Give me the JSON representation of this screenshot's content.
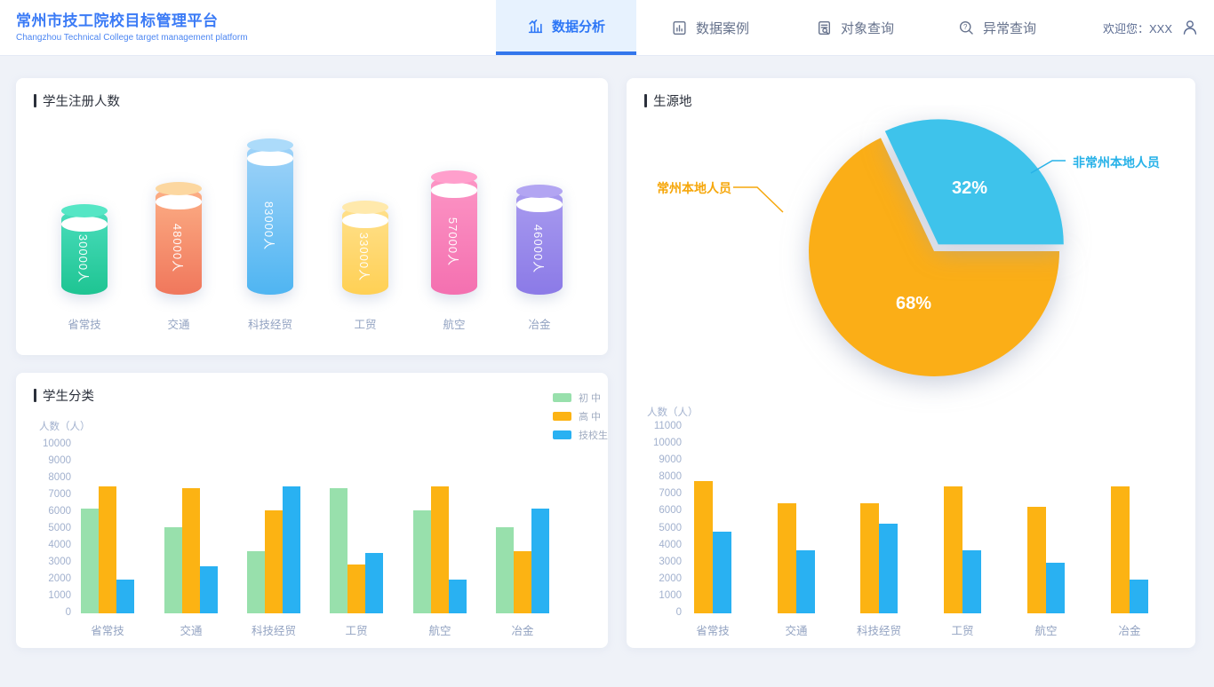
{
  "header": {
    "title": "常州市技工院校目标管理平台",
    "subtitle": "Changzhou Technical College target management platform",
    "tabs": [
      {
        "label": "数据分析",
        "icon": "analysis-icon",
        "active": true
      },
      {
        "label": "数据案例",
        "icon": "case-icon",
        "active": false
      },
      {
        "label": "对象查询",
        "icon": "object-query-icon",
        "active": false
      },
      {
        "label": "异常查询",
        "icon": "anomaly-query-icon",
        "active": false
      }
    ],
    "welcome": "欢迎您：XXX"
  },
  "panels": {
    "registration": {
      "title": "学生注册人数"
    },
    "category": {
      "title": "学生分类",
      "ylabel": "人数（人）"
    },
    "origin": {
      "title": "生源地",
      "ylabel": "人数（人）"
    }
  },
  "colors": {
    "brand_blue": "#3B7BF6",
    "active_tab_blue": "#2E77F6",
    "active_underline": "#3376EC",
    "page_bg": "#EFF2F8",
    "bar_green": "#98E0AC",
    "bar_orange": "#FCB313",
    "bar_blue": "#29B1F2",
    "pie_orange": "#FBAE17",
    "pie_blue": "#3EC3EB"
  },
  "chart_data": [
    {
      "id": "student-registration",
      "type": "bar",
      "style": "cylinder",
      "title": "学生注册人数",
      "categories": [
        "省常技",
        "交通",
        "科技经贸",
        "工贸",
        "航空",
        "冶金"
      ],
      "values": [
        30000,
        48000,
        83000,
        33000,
        57000,
        46000
      ],
      "value_labels": [
        "30000人",
        "48000人",
        "83000人",
        "33000人",
        "57000人",
        "46000人"
      ],
      "palette": [
        {
          "cap": "#55E6C5",
          "light": "#4ADDBC",
          "dark": "#1EC492"
        },
        {
          "cap": "#FCD7A0",
          "light": "#FCAE85",
          "dark": "#F0775C"
        },
        {
          "cap": "#ACDBFA",
          "light": "#A0D3F8",
          "dark": "#4FB5F2"
        },
        {
          "cap": "#FFE9AC",
          "light": "#FFE08C",
          "dark": "#FFD054"
        },
        {
          "cap": "#FF9FCC",
          "light": "#FC95C5",
          "dark": "#F470B0"
        },
        {
          "cap": "#B2A5F2",
          "light": "#A89BEF",
          "dark": "#8B7AE7"
        }
      ]
    },
    {
      "id": "student-category",
      "type": "bar",
      "title": "学生分类",
      "ylabel": "人数（人）",
      "ylim": [
        0,
        10000
      ],
      "yticks": [
        "10000",
        "9000",
        "8000",
        "7000",
        "6000",
        "5000",
        "4000",
        "3000",
        "2000",
        "1000",
        "0"
      ],
      "grid": false,
      "legend_position": "top-right",
      "categories": [
        "省常技",
        "交通",
        "科技经贸",
        "工贸",
        "航空",
        "冶金"
      ],
      "series": [
        {
          "name": "初 中",
          "color": "#98E0AC",
          "values": [
            6200,
            5100,
            3700,
            7400,
            6100,
            5100
          ]
        },
        {
          "name": "高 中",
          "color": "#FCB313",
          "values": [
            7500,
            7400,
            6100,
            2900,
            7500,
            3700
          ]
        },
        {
          "name": "技校生",
          "color": "#29B1F2",
          "values": [
            2000,
            2800,
            7500,
            3600,
            2000,
            6200
          ]
        }
      ]
    },
    {
      "id": "origin-pie",
      "type": "pie",
      "title": "生源地",
      "slices": [
        {
          "name": "常州本地人员",
          "pct": 68,
          "pct_label": "68%",
          "color": "#FBAE17",
          "label_color": "#F6A70B"
        },
        {
          "name": "非常州本地人员",
          "pct": 32,
          "pct_label": "32%",
          "color": "#3EC3EB",
          "label_color": "#27B2E8"
        }
      ]
    },
    {
      "id": "origin-bars",
      "type": "bar",
      "ylabel": "人数（人）",
      "ylim": [
        0,
        11000
      ],
      "yticks": [
        "11000",
        "10000",
        "9000",
        "8000",
        "7000",
        "6000",
        "5000",
        "4000",
        "3000",
        "2000",
        "1000",
        "0"
      ],
      "grid": false,
      "categories": [
        "省常技",
        "交通",
        "科技经贸",
        "工贸",
        "航空",
        "冶金"
      ],
      "series": [
        {
          "color": "#FCB313",
          "values": [
            7800,
            6500,
            6500,
            7500,
            6300,
            7500
          ]
        },
        {
          "color": "#29B1F2",
          "values": [
            4800,
            3700,
            5300,
            3700,
            3000,
            2000
          ]
        }
      ]
    }
  ]
}
